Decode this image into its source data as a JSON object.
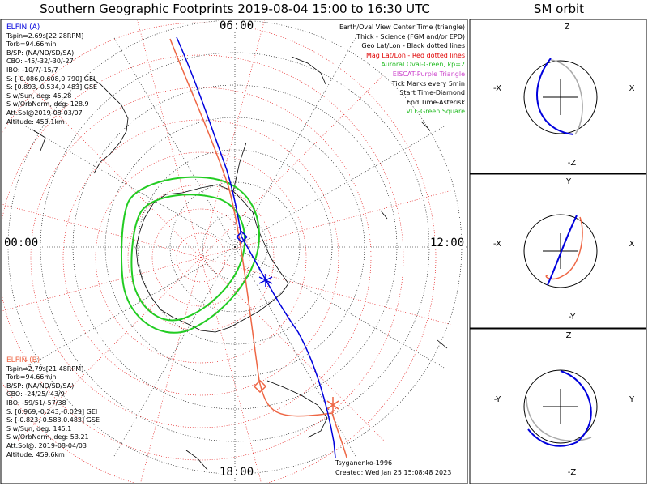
{
  "title": "Southern Geographic Footprints 2019-08-04 15:00 to 16:30 UTC",
  "sm_title": "SM orbit",
  "clock_labels": {
    "top": "06:00",
    "left": "00:00",
    "right": "12:00",
    "bottom": "18:00"
  },
  "legend": [
    {
      "text": "Earth/Oval View Center Time (triangle)",
      "color": "#000000"
    },
    {
      "text": "Thick - Science (FGM and/or EPD)",
      "color": "#000000"
    },
    {
      "text": "Geo Lat/Lon - Black dotted lines",
      "color": "#000000"
    },
    {
      "text": "Mag Lat/Lon - Red dotted lines",
      "color": "#e00000"
    },
    {
      "text": "Auroral Oval-Green, kp=2",
      "color": "#22bb22"
    },
    {
      "text": "EISCAT-Purple Triangle",
      "color": "#cc44cc"
    },
    {
      "text": "Tick Marks every 5min",
      "color": "#000000"
    },
    {
      "text": "Start Time-Diamond",
      "color": "#000000"
    },
    {
      "text": "End Time-Asterisk",
      "color": "#000000"
    },
    {
      "text": "VLF-Green Square",
      "color": "#22bb22"
    }
  ],
  "elfin_a": {
    "name": "ELFIN (A)",
    "color": "#0000dd",
    "lines": [
      "Tspin=2.69s[22.28RPM]",
      "Torb=94.66min",
      "B/SP: (NA/ND/SD/SA)",
      "CBO: -45/-32/-30/-27",
      "IBO: -10/7/-15/7",
      "S: [-0.086,0.608,0.790] GEI",
      "S: [0.893,-0.534,0.483] GSE",
      "S w/Sun, deg: 45.28",
      "S w/OrbNorm, deg: 128.9",
      "Att.Sol@2019-08-03/07",
      "Altitude: 459.1km"
    ]
  },
  "elfin_b": {
    "name": "ELFIN (B)",
    "color": "#ee6644",
    "lines": [
      "Tspin=2.79s[21.48RPM]",
      "Torb=94.66min",
      "B/SP: (NA/ND/SD/SA)",
      "CBO: -24/25/-43/9",
      "IBO: -59/51/-57/38",
      "S: [0.969,-0.243,-0.029] GEI",
      "S: [-0.823,-0.583,0.483] GSE",
      "S w/Sun, deg: 145.1",
      "S w/OrbNorm, deg: 53.21",
      "Att.Sol@: 2019-08-04/03",
      "Altitude: 459.6km"
    ]
  },
  "footer": {
    "model": "Tsyganenko-1996",
    "created": "Created: Wed Jan 25 15:08:48 2023"
  },
  "sm_panels": [
    {
      "top": "Z",
      "bottom": "-Z",
      "left": "-X",
      "right": "X"
    },
    {
      "top": "Y",
      "bottom": "-Y",
      "left": "-X",
      "right": "X"
    },
    {
      "top": "Z",
      "bottom": "-Z",
      "left": "-Y",
      "right": "Y"
    }
  ],
  "colors": {
    "elfin_a": "#0000dd",
    "elfin_b": "#ee6644",
    "oval": "#22cc22",
    "mag_grid": "#e00000",
    "geo_grid": "#000000"
  }
}
